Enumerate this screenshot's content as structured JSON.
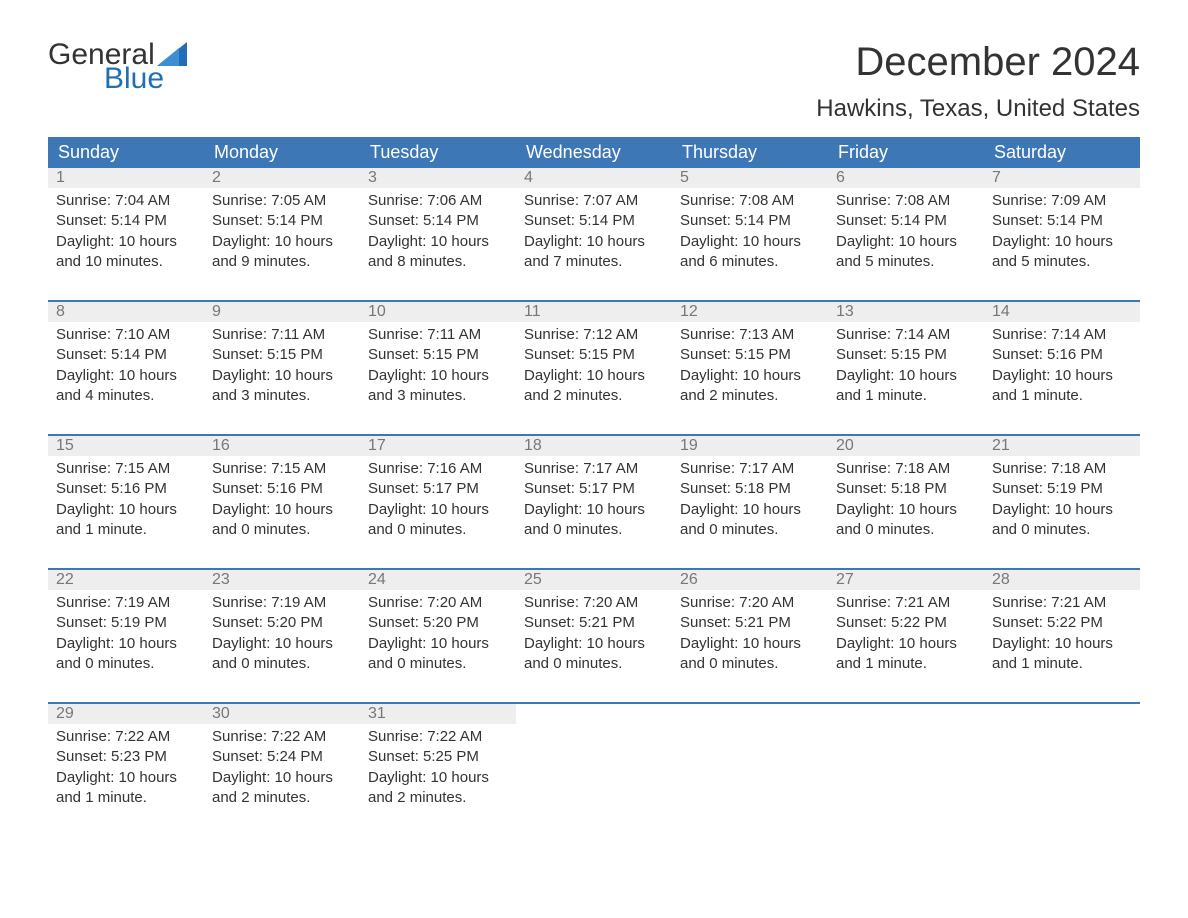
{
  "brand": {
    "word1": "General",
    "word2": "Blue"
  },
  "title": "December 2024",
  "location": "Hawkins, Texas, United States",
  "colors": {
    "header_bg": "#3d77b6",
    "header_text": "#ffffff",
    "daynum_bg": "#eeeeee",
    "daynum_text": "#777777",
    "body_text": "#333333",
    "accent_rule": "#3d77b6",
    "logo_blue": "#1f6fb2",
    "page_bg": "#ffffff"
  },
  "layout": {
    "columns": 7,
    "rows": 5,
    "font_family": "Arial",
    "title_fontsize": 40,
    "location_fontsize": 24,
    "weekday_fontsize": 18,
    "daynum_fontsize": 16,
    "detail_fontsize": 15
  },
  "weekdays": [
    "Sunday",
    "Monday",
    "Tuesday",
    "Wednesday",
    "Thursday",
    "Friday",
    "Saturday"
  ],
  "weeks": [
    [
      {
        "n": "1",
        "sunrise": "Sunrise: 7:04 AM",
        "sunset": "Sunset: 5:14 PM",
        "d1": "Daylight: 10 hours",
        "d2": "and 10 minutes."
      },
      {
        "n": "2",
        "sunrise": "Sunrise: 7:05 AM",
        "sunset": "Sunset: 5:14 PM",
        "d1": "Daylight: 10 hours",
        "d2": "and 9 minutes."
      },
      {
        "n": "3",
        "sunrise": "Sunrise: 7:06 AM",
        "sunset": "Sunset: 5:14 PM",
        "d1": "Daylight: 10 hours",
        "d2": "and 8 minutes."
      },
      {
        "n": "4",
        "sunrise": "Sunrise: 7:07 AM",
        "sunset": "Sunset: 5:14 PM",
        "d1": "Daylight: 10 hours",
        "d2": "and 7 minutes."
      },
      {
        "n": "5",
        "sunrise": "Sunrise: 7:08 AM",
        "sunset": "Sunset: 5:14 PM",
        "d1": "Daylight: 10 hours",
        "d2": "and 6 minutes."
      },
      {
        "n": "6",
        "sunrise": "Sunrise: 7:08 AM",
        "sunset": "Sunset: 5:14 PM",
        "d1": "Daylight: 10 hours",
        "d2": "and 5 minutes."
      },
      {
        "n": "7",
        "sunrise": "Sunrise: 7:09 AM",
        "sunset": "Sunset: 5:14 PM",
        "d1": "Daylight: 10 hours",
        "d2": "and 5 minutes."
      }
    ],
    [
      {
        "n": "8",
        "sunrise": "Sunrise: 7:10 AM",
        "sunset": "Sunset: 5:14 PM",
        "d1": "Daylight: 10 hours",
        "d2": "and 4 minutes."
      },
      {
        "n": "9",
        "sunrise": "Sunrise: 7:11 AM",
        "sunset": "Sunset: 5:15 PM",
        "d1": "Daylight: 10 hours",
        "d2": "and 3 minutes."
      },
      {
        "n": "10",
        "sunrise": "Sunrise: 7:11 AM",
        "sunset": "Sunset: 5:15 PM",
        "d1": "Daylight: 10 hours",
        "d2": "and 3 minutes."
      },
      {
        "n": "11",
        "sunrise": "Sunrise: 7:12 AM",
        "sunset": "Sunset: 5:15 PM",
        "d1": "Daylight: 10 hours",
        "d2": "and 2 minutes."
      },
      {
        "n": "12",
        "sunrise": "Sunrise: 7:13 AM",
        "sunset": "Sunset: 5:15 PM",
        "d1": "Daylight: 10 hours",
        "d2": "and 2 minutes."
      },
      {
        "n": "13",
        "sunrise": "Sunrise: 7:14 AM",
        "sunset": "Sunset: 5:15 PM",
        "d1": "Daylight: 10 hours",
        "d2": "and 1 minute."
      },
      {
        "n": "14",
        "sunrise": "Sunrise: 7:14 AM",
        "sunset": "Sunset: 5:16 PM",
        "d1": "Daylight: 10 hours",
        "d2": "and 1 minute."
      }
    ],
    [
      {
        "n": "15",
        "sunrise": "Sunrise: 7:15 AM",
        "sunset": "Sunset: 5:16 PM",
        "d1": "Daylight: 10 hours",
        "d2": "and 1 minute."
      },
      {
        "n": "16",
        "sunrise": "Sunrise: 7:15 AM",
        "sunset": "Sunset: 5:16 PM",
        "d1": "Daylight: 10 hours",
        "d2": "and 0 minutes."
      },
      {
        "n": "17",
        "sunrise": "Sunrise: 7:16 AM",
        "sunset": "Sunset: 5:17 PM",
        "d1": "Daylight: 10 hours",
        "d2": "and 0 minutes."
      },
      {
        "n": "18",
        "sunrise": "Sunrise: 7:17 AM",
        "sunset": "Sunset: 5:17 PM",
        "d1": "Daylight: 10 hours",
        "d2": "and 0 minutes."
      },
      {
        "n": "19",
        "sunrise": "Sunrise: 7:17 AM",
        "sunset": "Sunset: 5:18 PM",
        "d1": "Daylight: 10 hours",
        "d2": "and 0 minutes."
      },
      {
        "n": "20",
        "sunrise": "Sunrise: 7:18 AM",
        "sunset": "Sunset: 5:18 PM",
        "d1": "Daylight: 10 hours",
        "d2": "and 0 minutes."
      },
      {
        "n": "21",
        "sunrise": "Sunrise: 7:18 AM",
        "sunset": "Sunset: 5:19 PM",
        "d1": "Daylight: 10 hours",
        "d2": "and 0 minutes."
      }
    ],
    [
      {
        "n": "22",
        "sunrise": "Sunrise: 7:19 AM",
        "sunset": "Sunset: 5:19 PM",
        "d1": "Daylight: 10 hours",
        "d2": "and 0 minutes."
      },
      {
        "n": "23",
        "sunrise": "Sunrise: 7:19 AM",
        "sunset": "Sunset: 5:20 PM",
        "d1": "Daylight: 10 hours",
        "d2": "and 0 minutes."
      },
      {
        "n": "24",
        "sunrise": "Sunrise: 7:20 AM",
        "sunset": "Sunset: 5:20 PM",
        "d1": "Daylight: 10 hours",
        "d2": "and 0 minutes."
      },
      {
        "n": "25",
        "sunrise": "Sunrise: 7:20 AM",
        "sunset": "Sunset: 5:21 PM",
        "d1": "Daylight: 10 hours",
        "d2": "and 0 minutes."
      },
      {
        "n": "26",
        "sunrise": "Sunrise: 7:20 AM",
        "sunset": "Sunset: 5:21 PM",
        "d1": "Daylight: 10 hours",
        "d2": "and 0 minutes."
      },
      {
        "n": "27",
        "sunrise": "Sunrise: 7:21 AM",
        "sunset": "Sunset: 5:22 PM",
        "d1": "Daylight: 10 hours",
        "d2": "and 1 minute."
      },
      {
        "n": "28",
        "sunrise": "Sunrise: 7:21 AM",
        "sunset": "Sunset: 5:22 PM",
        "d1": "Daylight: 10 hours",
        "d2": "and 1 minute."
      }
    ],
    [
      {
        "n": "29",
        "sunrise": "Sunrise: 7:22 AM",
        "sunset": "Sunset: 5:23 PM",
        "d1": "Daylight: 10 hours",
        "d2": "and 1 minute."
      },
      {
        "n": "30",
        "sunrise": "Sunrise: 7:22 AM",
        "sunset": "Sunset: 5:24 PM",
        "d1": "Daylight: 10 hours",
        "d2": "and 2 minutes."
      },
      {
        "n": "31",
        "sunrise": "Sunrise: 7:22 AM",
        "sunset": "Sunset: 5:25 PM",
        "d1": "Daylight: 10 hours",
        "d2": "and 2 minutes."
      },
      null,
      null,
      null,
      null
    ]
  ]
}
